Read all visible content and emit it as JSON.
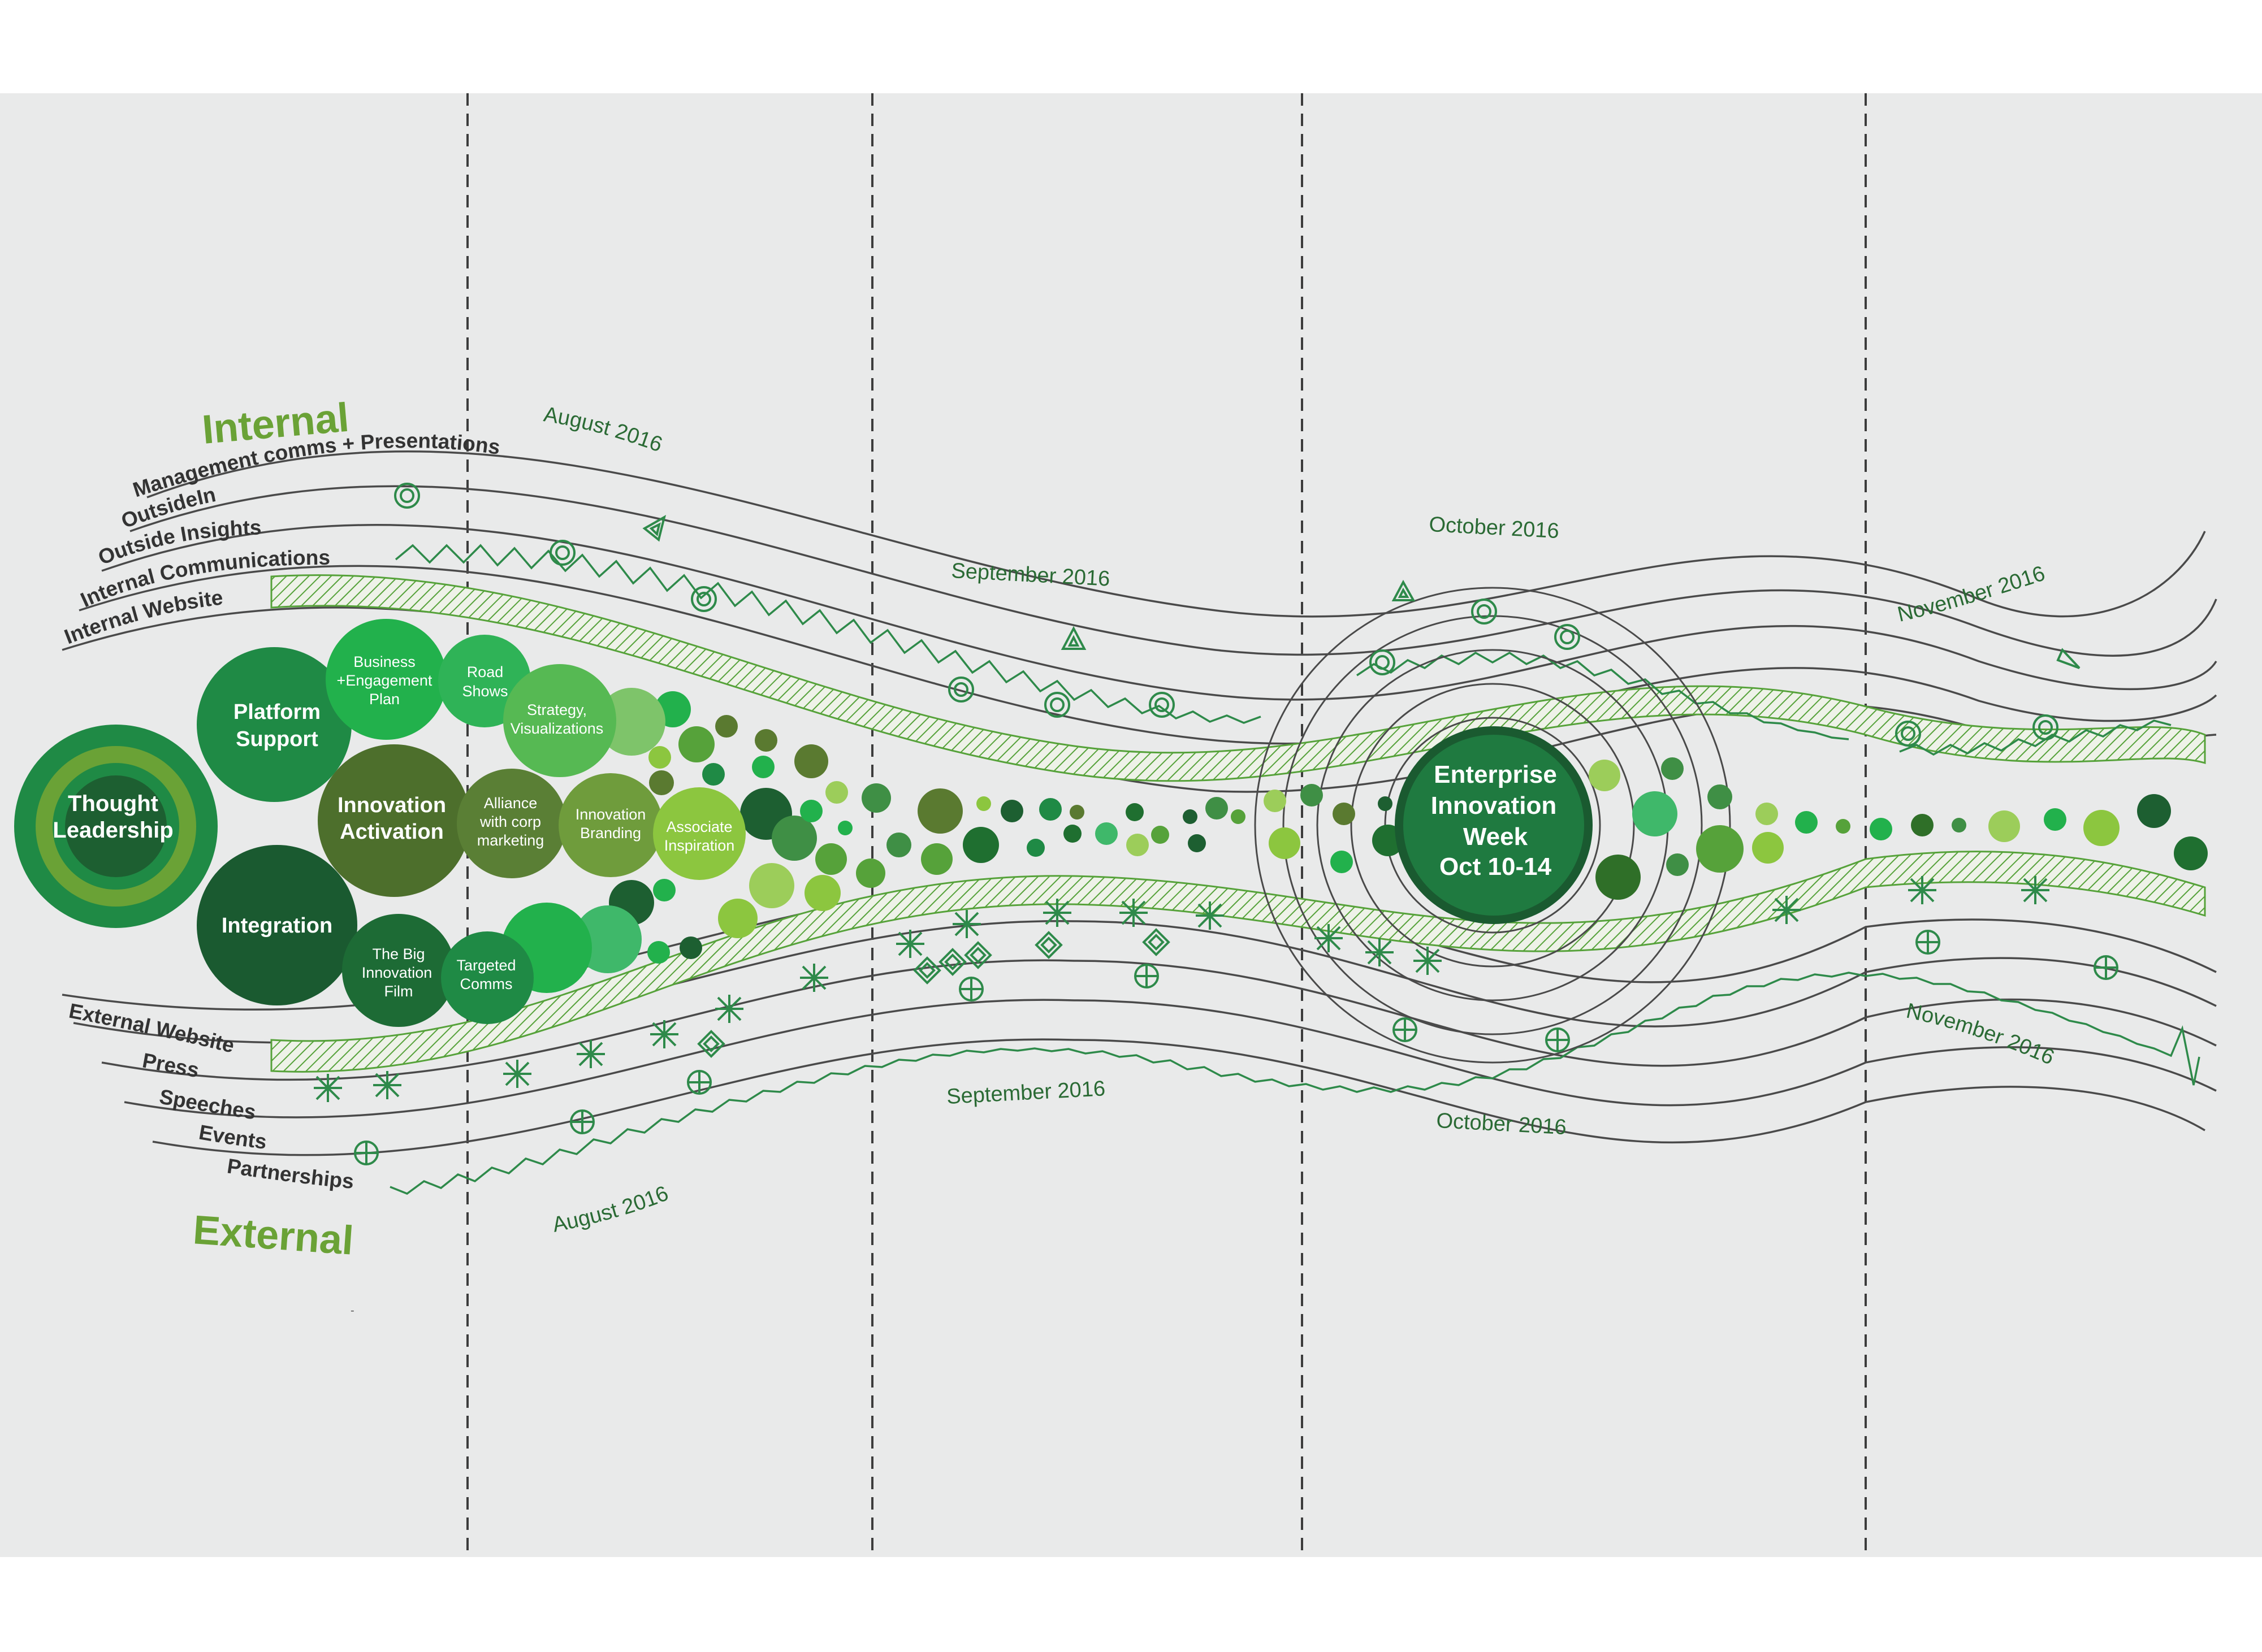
{
  "colors": {
    "panel_bg": "#e9eaea",
    "line": "#4a4a4a",
    "green_dark": "#1d5f31",
    "green_mid": "#1f8a45",
    "green_bright": "#22b14c",
    "green_olive": "#5a7a30",
    "green_light": "#8cc63f",
    "heading_green": "#6aa236"
  },
  "headings": {
    "internal": "Internal",
    "external": "External"
  },
  "internal_channels": [
    "Management comms + Presentations",
    "OutsideIn",
    "Outside Insights",
    "Internal Communications",
    "Internal Website"
  ],
  "external_channels": [
    "External Website",
    "Press",
    "Speeches",
    "Events",
    "Partnerships"
  ],
  "months": {
    "top": [
      "August 2016",
      "September 2016",
      "October 2016",
      "November 2016"
    ],
    "bottom": [
      "August 2016",
      "September 2016",
      "October 2016",
      "November 2016"
    ]
  },
  "core": {
    "thought_leadership": [
      "Thought",
      "Leadership"
    ]
  },
  "pillars": {
    "platform_support": [
      "Platform",
      "Support"
    ],
    "innovation_activation": [
      "Innovation",
      "Activation"
    ],
    "integration": [
      "Integration"
    ]
  },
  "activities": {
    "business_engagement": [
      "Business",
      "+Engagement",
      "Plan"
    ],
    "road_shows": [
      "Road",
      "Shows"
    ],
    "strategy_visualizations": [
      "Strategy,",
      "Visualizations"
    ],
    "alliance": [
      "Alliance",
      "with corp",
      "marketing"
    ],
    "innovation_branding": [
      "Innovation",
      "Branding"
    ],
    "associate_inspiration": [
      "Associate",
      "Inspiration"
    ],
    "big_film": [
      "The Big",
      "Innovation",
      "Film"
    ],
    "targeted_comms": [
      "Targeted",
      "Comms"
    ]
  },
  "event": {
    "lines": [
      "Enterprise",
      "Innovation",
      "Week",
      "Oct 10-14"
    ]
  },
  "symbols": {
    "management": "triangle-icon",
    "outsidein": "ring-icon",
    "internal_comms": "zigzag-icon",
    "website": "hatch-band",
    "press": "asterisk-icon",
    "speeches": "diamond-icon",
    "events": "crosshair-circle-icon",
    "partnerships": "zigzag-icon"
  }
}
